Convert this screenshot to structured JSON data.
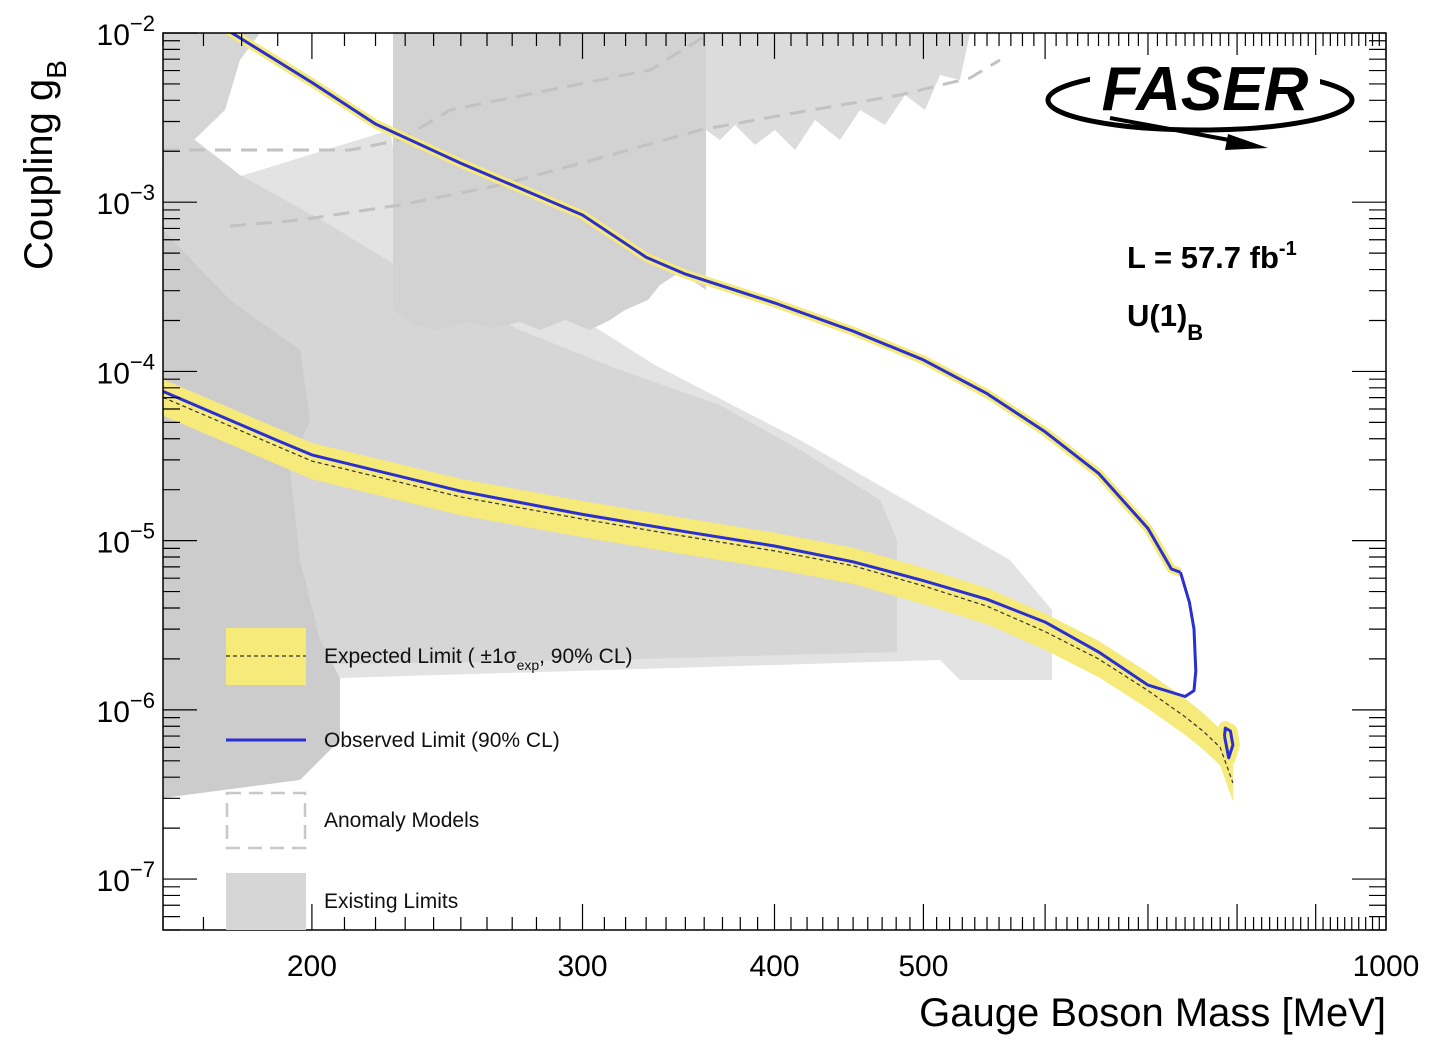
{
  "chart_data": {
    "type": "line",
    "title": "",
    "xlabel": "Gauge Boson Mass [MeV]",
    "ylabel": "Coupling g",
    "ylabel_sub": "B",
    "xscale": "log",
    "yscale": "log",
    "xlim": [
      160,
      1000
    ],
    "ylim": [
      5e-08,
      0.01
    ],
    "x_ticks": [
      {
        "value": 200,
        "label": "200"
      },
      {
        "value": 300,
        "label": "300"
      },
      {
        "value": 400,
        "label": "400"
      },
      {
        "value": 500,
        "label": "500"
      },
      {
        "value": 1000,
        "label": "1000"
      }
    ],
    "y_ticks": [
      {
        "exp": -2,
        "base": "10",
        "sup": "−2"
      },
      {
        "exp": -3,
        "base": "10",
        "sup": "−3"
      },
      {
        "exp": -4,
        "base": "10",
        "sup": "−4"
      },
      {
        "exp": -5,
        "base": "10",
        "sup": "−5"
      },
      {
        "exp": -6,
        "base": "10",
        "sup": "−6"
      },
      {
        "exp": -7,
        "base": "10",
        "sup": "−7"
      }
    ],
    "grid": false,
    "legend_position": "bottom-left",
    "legend": [
      {
        "key": "expected",
        "text": "Expected Limit ( ±1σ",
        "sub": "exp",
        "text_after": ", 90% CL)"
      },
      {
        "key": "observed",
        "text": "Observed Limit (90% CL)"
      },
      {
        "key": "anomaly",
        "text": "Anomaly Models"
      },
      {
        "key": "existing",
        "text": "Existing Limits"
      }
    ],
    "annotations": {
      "luminosity_prefix": "L = 57.7 fb",
      "luminosity_sup": "-1",
      "model": "U(1)",
      "model_sub": "B",
      "logo": "FASER"
    },
    "colors": {
      "observed": "#2a2fd0",
      "expected_band": "#f5ea7a",
      "expected_line": "#333333",
      "existing_limits": "#cfcfcf",
      "existing_limits_light": "#e2e2e2",
      "anomaly": "#c8c8c8"
    },
    "series": [
      {
        "name": "Observed Limit (90% CL)",
        "lower": [
          [
            160,
            7.62e-05
          ],
          [
            190,
            3.9e-05
          ],
          [
            200,
            3.21e-05
          ],
          [
            250,
            1.96e-05
          ],
          [
            300,
            1.43e-05
          ],
          [
            350,
            1.13e-05
          ],
          [
            400,
            9.3e-06
          ],
          [
            450,
            7.5e-06
          ],
          [
            500,
            5.8e-06
          ],
          [
            550,
            4.5e-06
          ],
          [
            600,
            3.3e-06
          ],
          [
            650,
            2.2e-06
          ],
          [
            700,
            1.4e-06
          ],
          [
            740,
            1.2e-06
          ],
          [
            750,
            1.3e-06
          ],
          [
            752,
            1.7e-06
          ],
          [
            750,
            3e-06
          ],
          [
            745,
            4.3e-06
          ],
          [
            735,
            6.5e-06
          ]
        ],
        "upper": [
          [
            175,
            0.0108
          ],
          [
            200,
            0.0051
          ],
          [
            220,
            0.0029
          ],
          [
            250,
            0.0017
          ],
          [
            300,
            0.00084
          ],
          [
            330,
            0.000473
          ],
          [
            350,
            0.000376
          ],
          [
            400,
            0.000254
          ],
          [
            450,
            0.000173
          ],
          [
            500,
            0.000117
          ],
          [
            550,
            7.4e-05
          ],
          [
            600,
            4.4e-05
          ],
          [
            650,
            2.5e-05
          ],
          [
            700,
            1.18e-05
          ],
          [
            725,
            6.8e-06
          ],
          [
            735,
            6.5e-06
          ]
        ],
        "island": [
          [
            785,
            7e-07
          ],
          [
            790,
            5.2e-07
          ],
          [
            795,
            6.2e-07
          ],
          [
            792,
            7.5e-07
          ],
          [
            786,
            7.8e-07
          ],
          [
            785,
            7e-07
          ]
        ]
      },
      {
        "name": "Expected Limit",
        "values": [
          [
            160,
            7.02e-05
          ],
          [
            200,
            2.95e-05
          ],
          [
            250,
            1.81e-05
          ],
          [
            300,
            1.34e-05
          ],
          [
            350,
            1.06e-05
          ],
          [
            400,
            8.7e-06
          ],
          [
            450,
            7.1e-06
          ],
          [
            500,
            5.4e-06
          ],
          [
            550,
            4.1e-06
          ],
          [
            600,
            2.9e-06
          ],
          [
            650,
            2e-06
          ],
          [
            700,
            1.3e-06
          ],
          [
            740,
            9.1e-07
          ],
          [
            760,
            7.5e-07
          ],
          [
            780,
            6e-07
          ],
          [
            795,
            3.7e-07
          ]
        ]
      }
    ]
  }
}
